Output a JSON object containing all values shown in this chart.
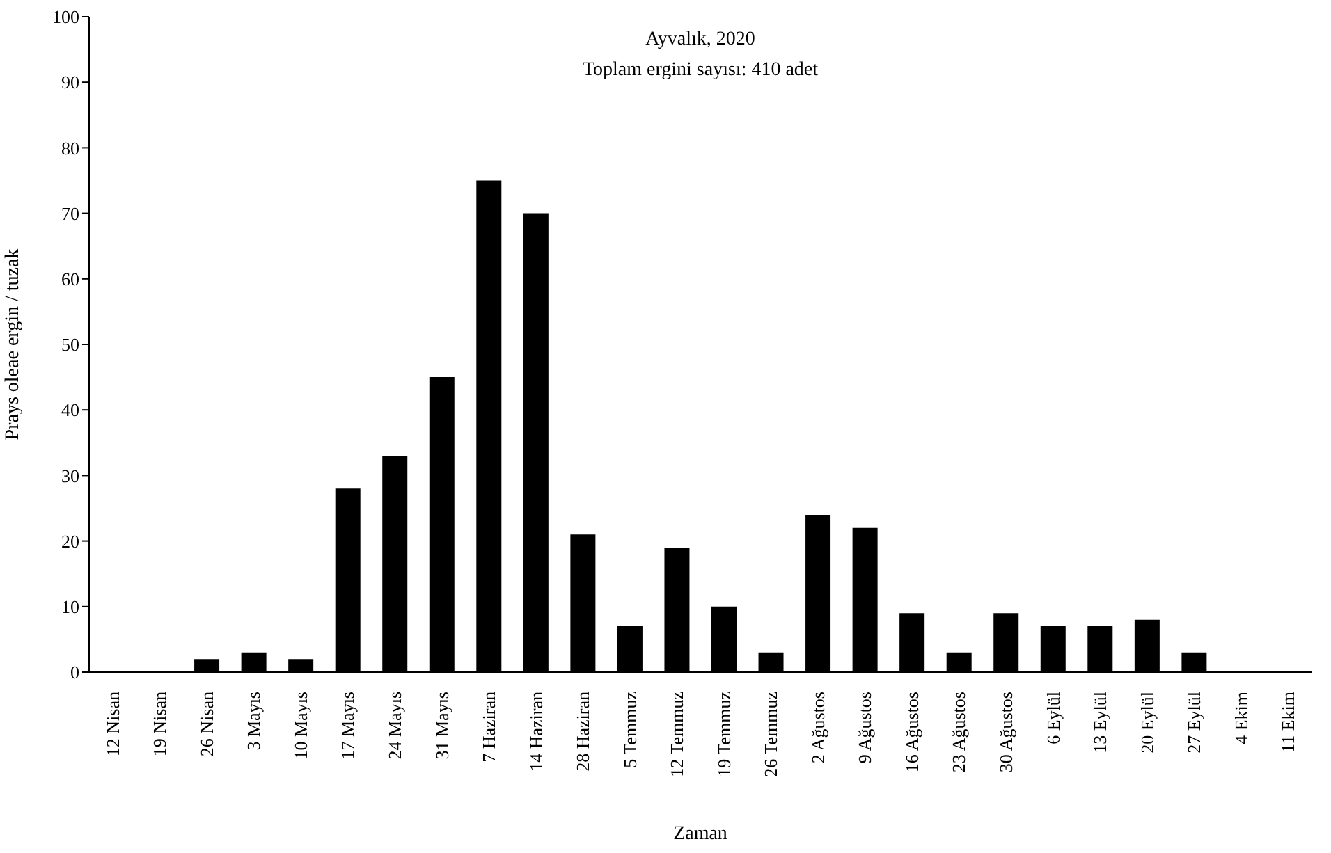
{
  "chart_data": {
    "type": "bar",
    "title": "Ayvalık, 2020",
    "subtitle": "Toplam ergini sayısı: 410 adet",
    "xlabel": "Zaman",
    "ylabel": "Prays oleae ergin / tuzak",
    "categories": [
      "12 Nisan",
      "19 Nisan",
      "26 Nisan",
      "3 Mayıs",
      "10 Mayıs",
      "17 Mayıs",
      "24 Mayıs",
      "31 Mayıs",
      "7 Haziran",
      "14 Haziran",
      "28 Haziran",
      "5 Temmuz",
      "12 Temmuz",
      "19 Temmuz",
      "26 Temmuz",
      "2 Ağustos",
      "9 Ağustos",
      "16 Ağustos",
      "23 Ağustos",
      "30 Ağustos",
      "6 Eylül",
      "13 Eylül",
      "20 Eylül",
      "27 Eylül",
      "4 Ekim",
      "11 Ekim"
    ],
    "values": [
      0,
      0,
      2,
      3,
      2,
      28,
      33,
      45,
      75,
      70,
      21,
      7,
      19,
      10,
      3,
      24,
      22,
      9,
      3,
      9,
      7,
      7,
      8,
      3,
      0,
      0
    ],
    "color": "#000000",
    "ylim": [
      0,
      100
    ],
    "yticks": [
      0,
      10,
      20,
      30,
      40,
      50,
      60,
      70,
      80,
      90,
      100
    ],
    "grid": false
  }
}
